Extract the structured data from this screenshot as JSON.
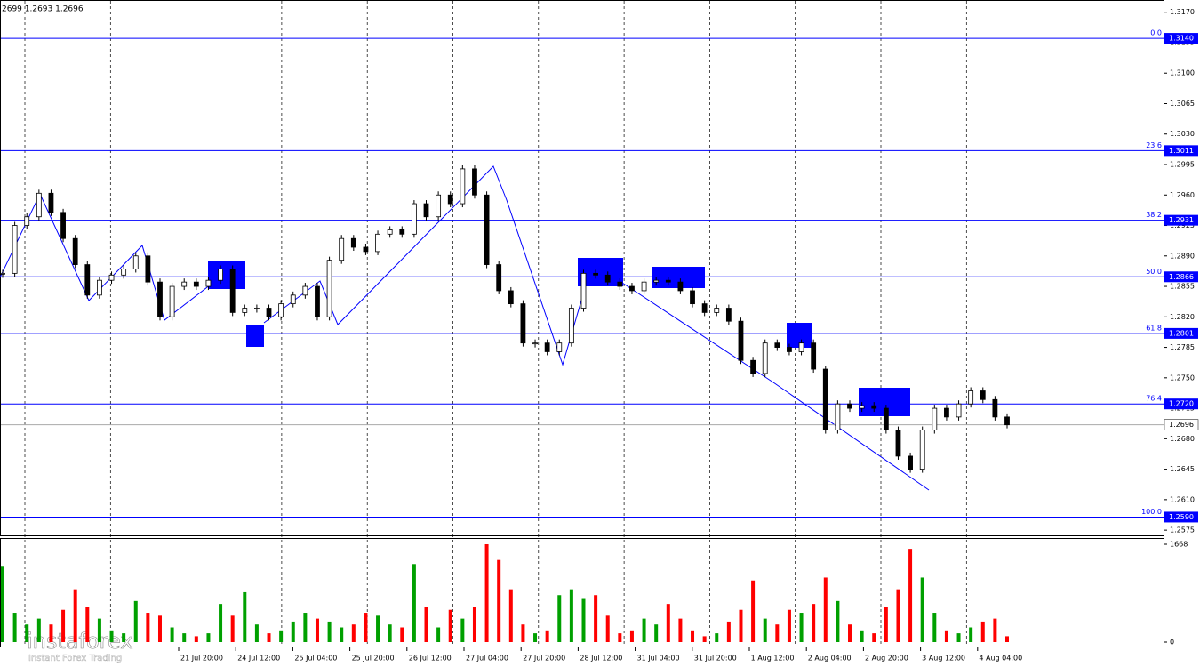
{
  "chart_data": {
    "type": "candlestick",
    "header": "2699 1.2693 1.2696",
    "brand": "instaforex",
    "brand_tagline": "Instant Forex Trading",
    "ylim": [
      1.2569,
      1.3184
    ],
    "yticks": [
      {
        "value": 1.317,
        "label": "1.3170"
      },
      {
        "value": 1.3135,
        "label": "1.3135"
      },
      {
        "value": 1.31,
        "label": "1.3100"
      },
      {
        "value": 1.3065,
        "label": "1.3065"
      },
      {
        "value": 1.303,
        "label": "1.3030"
      },
      {
        "value": 1.2995,
        "label": "1.2995"
      },
      {
        "value": 1.296,
        "label": "1.2960"
      },
      {
        "value": 1.2925,
        "label": "1.2925"
      },
      {
        "value": 1.289,
        "label": "1.2890"
      },
      {
        "value": 1.2855,
        "label": "1.2855"
      },
      {
        "value": 1.282,
        "label": "1.2820"
      },
      {
        "value": 1.2785,
        "label": "1.2785"
      },
      {
        "value": 1.275,
        "label": "1.2750"
      },
      {
        "value": 1.2715,
        "label": "1.2715"
      },
      {
        "value": 1.268,
        "label": "1.2680"
      },
      {
        "value": 1.2645,
        "label": "1.2645"
      },
      {
        "value": 1.261,
        "label": "1.2610"
      },
      {
        "value": 1.2575,
        "label": "1.2575"
      }
    ],
    "fib_levels": [
      {
        "level": "0.0",
        "price": {
          "value": 1.314,
          "label": "1.3140"
        }
      },
      {
        "level": "23.6",
        "price": {
          "value": 1.3011,
          "label": "1.3011"
        }
      },
      {
        "level": "38.2",
        "price": {
          "value": 1.2931,
          "label": "1.2931"
        }
      },
      {
        "level": "50.0",
        "price": {
          "value": 1.2866,
          "label": "1.2866"
        }
      },
      {
        "level": "61.8",
        "price": {
          "value": 1.2801,
          "label": "1.2801"
        }
      },
      {
        "level": "76.4",
        "price": {
          "value": 1.272,
          "label": "1.2720"
        }
      },
      {
        "level": "100.0",
        "price": {
          "value": 1.259,
          "label": "1.2590"
        }
      }
    ],
    "current_price": {
      "value": 1.2696,
      "label": "1.2696"
    },
    "x_labels": [
      "21 Jul 20:00",
      "24 Jul 12:00",
      "25 Jul 04:00",
      "25 Jul 20:00",
      "26 Jul 12:00",
      "27 Jul 04:00",
      "27 Jul 20:00",
      "28 Jul 12:00",
      "31 Jul 04:00",
      "31 Jul 20:00",
      "1 Aug 12:00",
      "2 Aug 04:00",
      "2 Aug 20:00",
      "3 Aug 12:00",
      "4 Aug 04:00"
    ],
    "close": [
      1.287,
      1.2925,
      1.2935,
      1.2962,
      1.294,
      1.291,
      1.288,
      1.2845,
      1.2862,
      1.2868,
      1.2875,
      1.289,
      1.286,
      1.282,
      1.2855,
      1.286,
      1.2855,
      1.2862,
      1.2875,
      1.2825,
      1.283,
      1.283,
      1.282,
      1.2835,
      1.2845,
      1.2855,
      1.282,
      1.2885,
      1.291,
      1.29,
      1.2895,
      1.2915,
      1.292,
      1.2915,
      1.295,
      1.2935,
      1.296,
      1.295,
      1.299,
      1.296,
      1.288,
      1.285,
      1.2835,
      1.279,
      1.279,
      1.278,
      1.279,
      1.283,
      1.287,
      1.2868,
      1.286,
      1.2855,
      1.285,
      1.286,
      1.2862,
      1.286,
      1.285,
      1.2835,
      1.2825,
      1.283,
      1.2815,
      1.277,
      1.2755,
      1.279,
      1.2785,
      1.278,
      1.279,
      1.276,
      1.269,
      1.272,
      1.2715,
      1.2718,
      1.2715,
      1.269,
      1.266,
      1.2645,
      1.269,
      1.2715,
      1.2705,
      1.272,
      1.2735,
      1.2725,
      1.2705,
      1.2696
    ],
    "volume": [
      1300,
      500,
      300,
      400,
      300,
      550,
      900,
      600,
      400,
      200,
      150,
      700,
      500,
      450,
      250,
      150,
      100,
      150,
      650,
      450,
      850,
      300,
      150,
      200,
      350,
      500,
      400,
      350,
      250,
      300,
      500,
      450,
      300,
      250,
      1330,
      600,
      250,
      550,
      400,
      600,
      1668,
      1400,
      900,
      300,
      150,
      200,
      800,
      900,
      750,
      800,
      450,
      150,
      200,
      400,
      300,
      650,
      400,
      200,
      100,
      150,
      350,
      550,
      1050,
      400,
      300,
      550,
      500,
      650,
      1100,
      700,
      300,
      200,
      150,
      600,
      900,
      1590,
      1100,
      500,
      200,
      150,
      250,
      350,
      400,
      100
    ],
    "volume_ylim": [
      0,
      1668
    ],
    "volume_yticks": [
      1668,
      0
    ],
    "up_color": "#00a000",
    "down_color": "#ff0000"
  }
}
